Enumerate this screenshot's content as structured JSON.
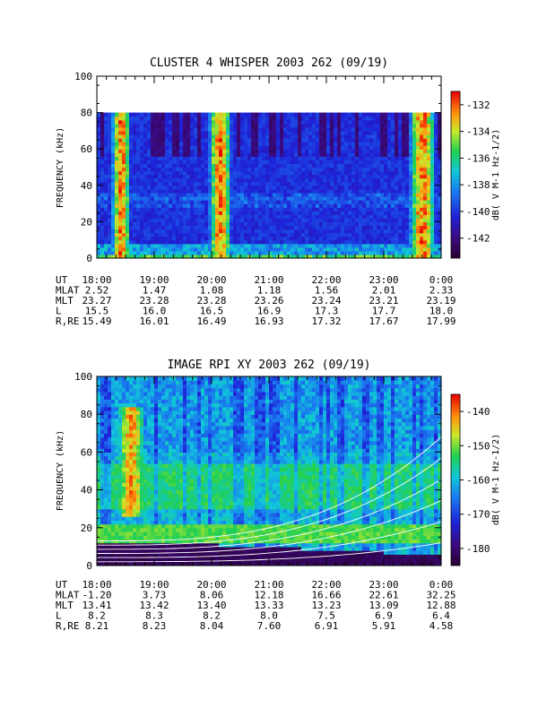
{
  "chart_data": [
    {
      "type": "heatmap",
      "title": "CLUSTER 4 WHISPER 2003 262 (09/19)",
      "ylabel": "FREQUENCY (kHz)",
      "ylim": [
        0,
        100
      ],
      "yticks": [
        0,
        20,
        40,
        60,
        80,
        100
      ],
      "data_top_khz": 80,
      "xlim_hours": [
        18,
        24
      ],
      "colorbar": {
        "label": "dB( V M-1 Hz-1/2)",
        "range": [
          -143.5,
          -131
        ],
        "ticks": [
          -132,
          -134,
          -136,
          -138,
          -140,
          -142
        ]
      },
      "bright_bands_hours": [
        {
          "start": 18.3,
          "end": 18.55,
          "level": "max"
        },
        {
          "start": 20.0,
          "end": 20.3,
          "level": "max"
        },
        {
          "start": 23.5,
          "end": 23.85,
          "level": "max"
        }
      ],
      "ephemeris": {
        "row_labels": [
          "UT",
          "MLAT",
          "MLT",
          "L",
          "R,RE"
        ],
        "columns": [
          [
            "18:00",
            "2.52",
            "23.27",
            "15.5",
            "15.49"
          ],
          [
            "19:00",
            "1.47",
            "23.28",
            "16.0",
            "16.01"
          ],
          [
            "20:00",
            "1.08",
            "23.28",
            "16.5",
            "16.49"
          ],
          [
            "21:00",
            "1.18",
            "23.26",
            "16.9",
            "16.93"
          ],
          [
            "22:00",
            "1.56",
            "23.24",
            "17.3",
            "17.32"
          ],
          [
            "23:00",
            "2.01",
            "23.21",
            "17.7",
            "17.67"
          ],
          [
            "0:00",
            "2.33",
            "23.19",
            "18.0",
            "17.99"
          ]
        ]
      }
    },
    {
      "type": "heatmap",
      "title": "IMAGE RPI XY 2003 262 (09/19)",
      "ylabel": "FREQUENCY (kHz)",
      "ylim": [
        0,
        100
      ],
      "yticks": [
        0,
        20,
        40,
        60,
        80,
        100
      ],
      "xlim_hours": [
        18,
        24
      ],
      "colorbar": {
        "label": "dB( V M-1 Hz-1/2)",
        "range": [
          -185,
          -135
        ],
        "ticks": [
          -140,
          -150,
          -160,
          -170,
          -180
        ]
      },
      "bright_bands_hours": [
        {
          "start": 18.4,
          "end": 18.8,
          "level": "high"
        }
      ],
      "ephemeris": {
        "row_labels": [
          "UT",
          "MLAT",
          "MLT",
          "L",
          "R,RE"
        ],
        "columns": [
          [
            "18:00",
            "-1.20",
            "13.41",
            "8.2",
            "8.21"
          ],
          [
            "19:00",
            "3.73",
            "13.42",
            "8.3",
            "8.23"
          ],
          [
            "20:00",
            "8.06",
            "13.40",
            "8.2",
            "8.04"
          ],
          [
            "21:00",
            "12.18",
            "13.33",
            "8.0",
            "7.60"
          ],
          [
            "22:00",
            "16.66",
            "13.23",
            "7.5",
            "6.91"
          ],
          [
            "23:00",
            "22.61",
            "13.09",
            "6.9",
            "5.91"
          ],
          [
            "0:00",
            "32.25",
            "12.88",
            "6.4",
            "4.58"
          ]
        ]
      }
    }
  ]
}
